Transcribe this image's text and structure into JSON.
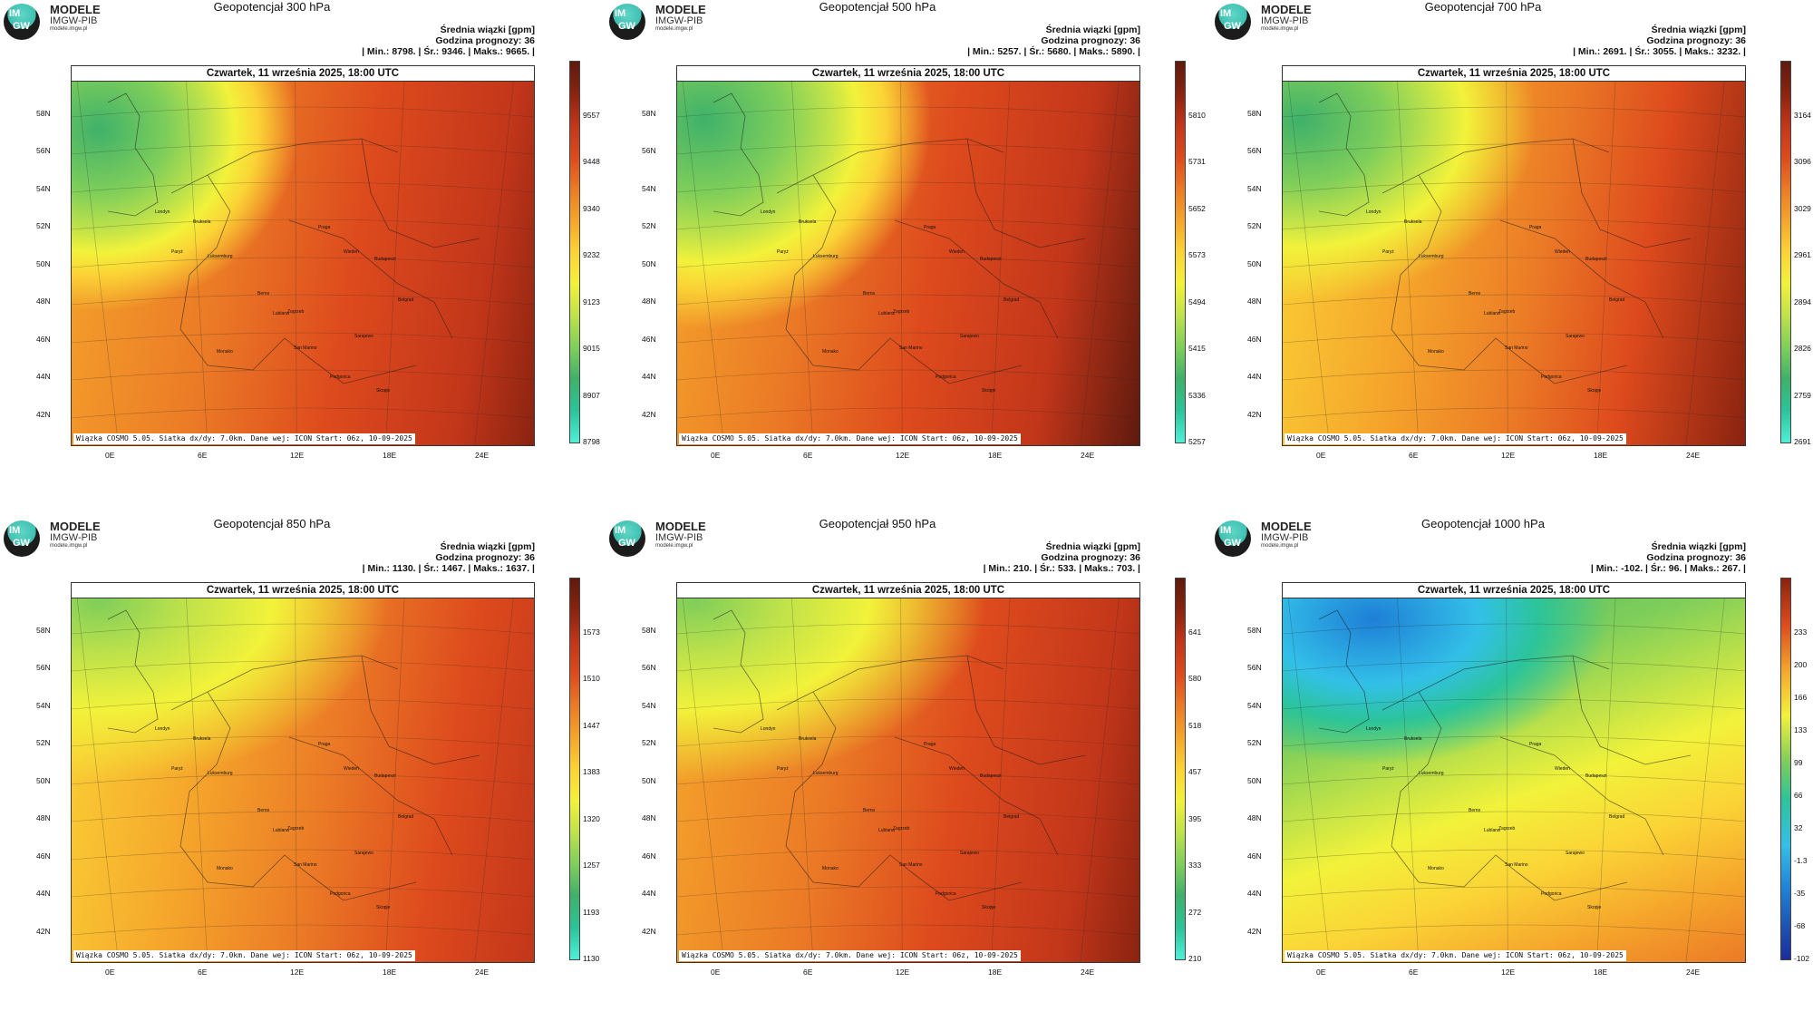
{
  "logo": {
    "line1": "MODELE",
    "line2": "IMGW-PIB",
    "line3": "modele.imgw.pl",
    "circle_top": "IM",
    "circle_bottom": "GW"
  },
  "common": {
    "date": "Czwartek, 11 września 2025, 18:00 UTC",
    "variable": "Średnia wiązki [gpm]",
    "forecast_hour": "Godzina prognozy: 36",
    "footer": "Wiązka COSMO 5.05. Siatka dx/dy: 7.0km. Dane wej: ICON Start: 06z, 10-09-2025",
    "lat_labels": [
      "58N",
      "56N",
      "54N",
      "52N",
      "50N",
      "48N",
      "46N",
      "44N",
      "42N"
    ],
    "lon_labels": [
      "0E",
      "6E",
      "12E",
      "18E",
      "24E"
    ],
    "cities": [
      "Londyn",
      "Bruksela",
      "Paryż",
      "Luksemburg",
      "Praga",
      "Wiedeń",
      "Budapeszt",
      "Berno",
      "Lublana",
      "Zagrzeb",
      "Belgrad",
      "San Marino",
      "Sarajewo",
      "Podgorica",
      "Skopje",
      "Monako"
    ]
  },
  "panels": [
    {
      "title": "Geopotencjał 300 hPa",
      "stats": "| Min.:   8798. | Śr.:   9346. | Maks.:   9665. |",
      "colorbar_ticks": [
        "9557",
        "9448",
        "9340",
        "9232",
        "9123",
        "9015",
        "8907",
        "8798"
      ]
    },
    {
      "title": "Geopotencjał 500 hPa",
      "stats": "| Min.:   5257. | Śr.:   5680. | Maks.:   5890. |",
      "colorbar_ticks": [
        "5810",
        "5731",
        "5652",
        "5573",
        "5494",
        "5415",
        "5336",
        "5257"
      ]
    },
    {
      "title": "Geopotencjał 700 hPa",
      "stats": "| Min.:   2691. | Śr.:   3055. | Maks.:   3232. |",
      "colorbar_ticks": [
        "3164",
        "3096",
        "3029",
        "2961",
        "2894",
        "2826",
        "2759",
        "2691"
      ]
    },
    {
      "title": "Geopotencjał 850 hPa",
      "stats": "| Min.:   1130. | Śr.:   1467. | Maks.:   1637. |",
      "colorbar_ticks": [
        "1573",
        "1510",
        "1447",
        "1383",
        "1320",
        "1257",
        "1193",
        "1130"
      ]
    },
    {
      "title": "Geopotencjał 950 hPa",
      "stats": "| Min.:   210. | Śr.:   533. | Maks.:   703. |",
      "colorbar_ticks": [
        "641",
        "580",
        "518",
        "457",
        "395",
        "333",
        "272",
        "210"
      ]
    },
    {
      "title": "Geopotencjał 1000 hPa",
      "stats": "| Min.:   -102. | Śr.:   96. | Maks.:   267. |",
      "colorbar_ticks": [
        "233",
        "200",
        "166",
        "133",
        "99",
        "66",
        "32",
        "-1.3",
        "-35",
        "-68",
        "-102"
      ]
    }
  ],
  "colors": {
    "scale_warm": [
      "#5e1a0e",
      "#8a2310",
      "#c2361a",
      "#dd4a1d",
      "#eb7a26",
      "#f5a52b",
      "#fbd336",
      "#f2f23a",
      "#bfe24a",
      "#7fce5a",
      "#3fb16a",
      "#2bc49a",
      "#4ff0d8"
    ],
    "scale_cold_extra": [
      "#33c0e8",
      "#1e7fd6",
      "#1f4fb0",
      "#1a2ea0"
    ]
  }
}
